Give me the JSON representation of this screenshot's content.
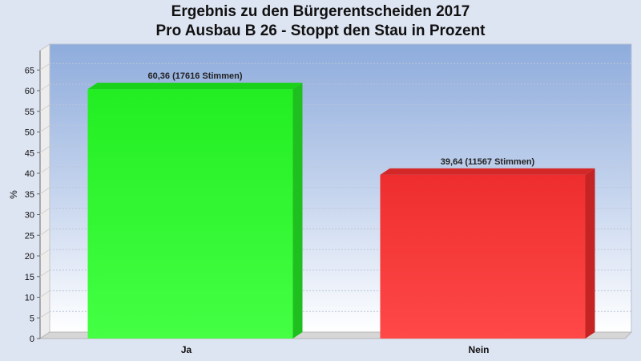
{
  "chart_data": {
    "type": "bar",
    "title": "Ergebnis zu den Bürgerentscheiden 2017",
    "subtitle": "Pro Ausbau B 26 - Stoppt den Stau in Prozent",
    "xlabel": "",
    "ylabel": "%",
    "ylim": [
      0,
      70
    ],
    "yticks": [
      0,
      5,
      10,
      15,
      20,
      25,
      30,
      35,
      40,
      45,
      50,
      55,
      60,
      65
    ],
    "ytick_labels": [
      "0",
      "5",
      "10",
      "15",
      "20",
      "25",
      "30",
      "35",
      "40",
      "45",
      "50",
      "55",
      "60",
      "65"
    ],
    "grid": true,
    "categories": [
      "Ja",
      "Nein"
    ],
    "values": [
      60.36,
      39.64
    ],
    "data_labels": [
      "60,36 (17616 Stimmen)",
      "39,64 (11567 Stimmen)"
    ],
    "colors": [
      "#33ee33",
      "#ee3333"
    ]
  }
}
